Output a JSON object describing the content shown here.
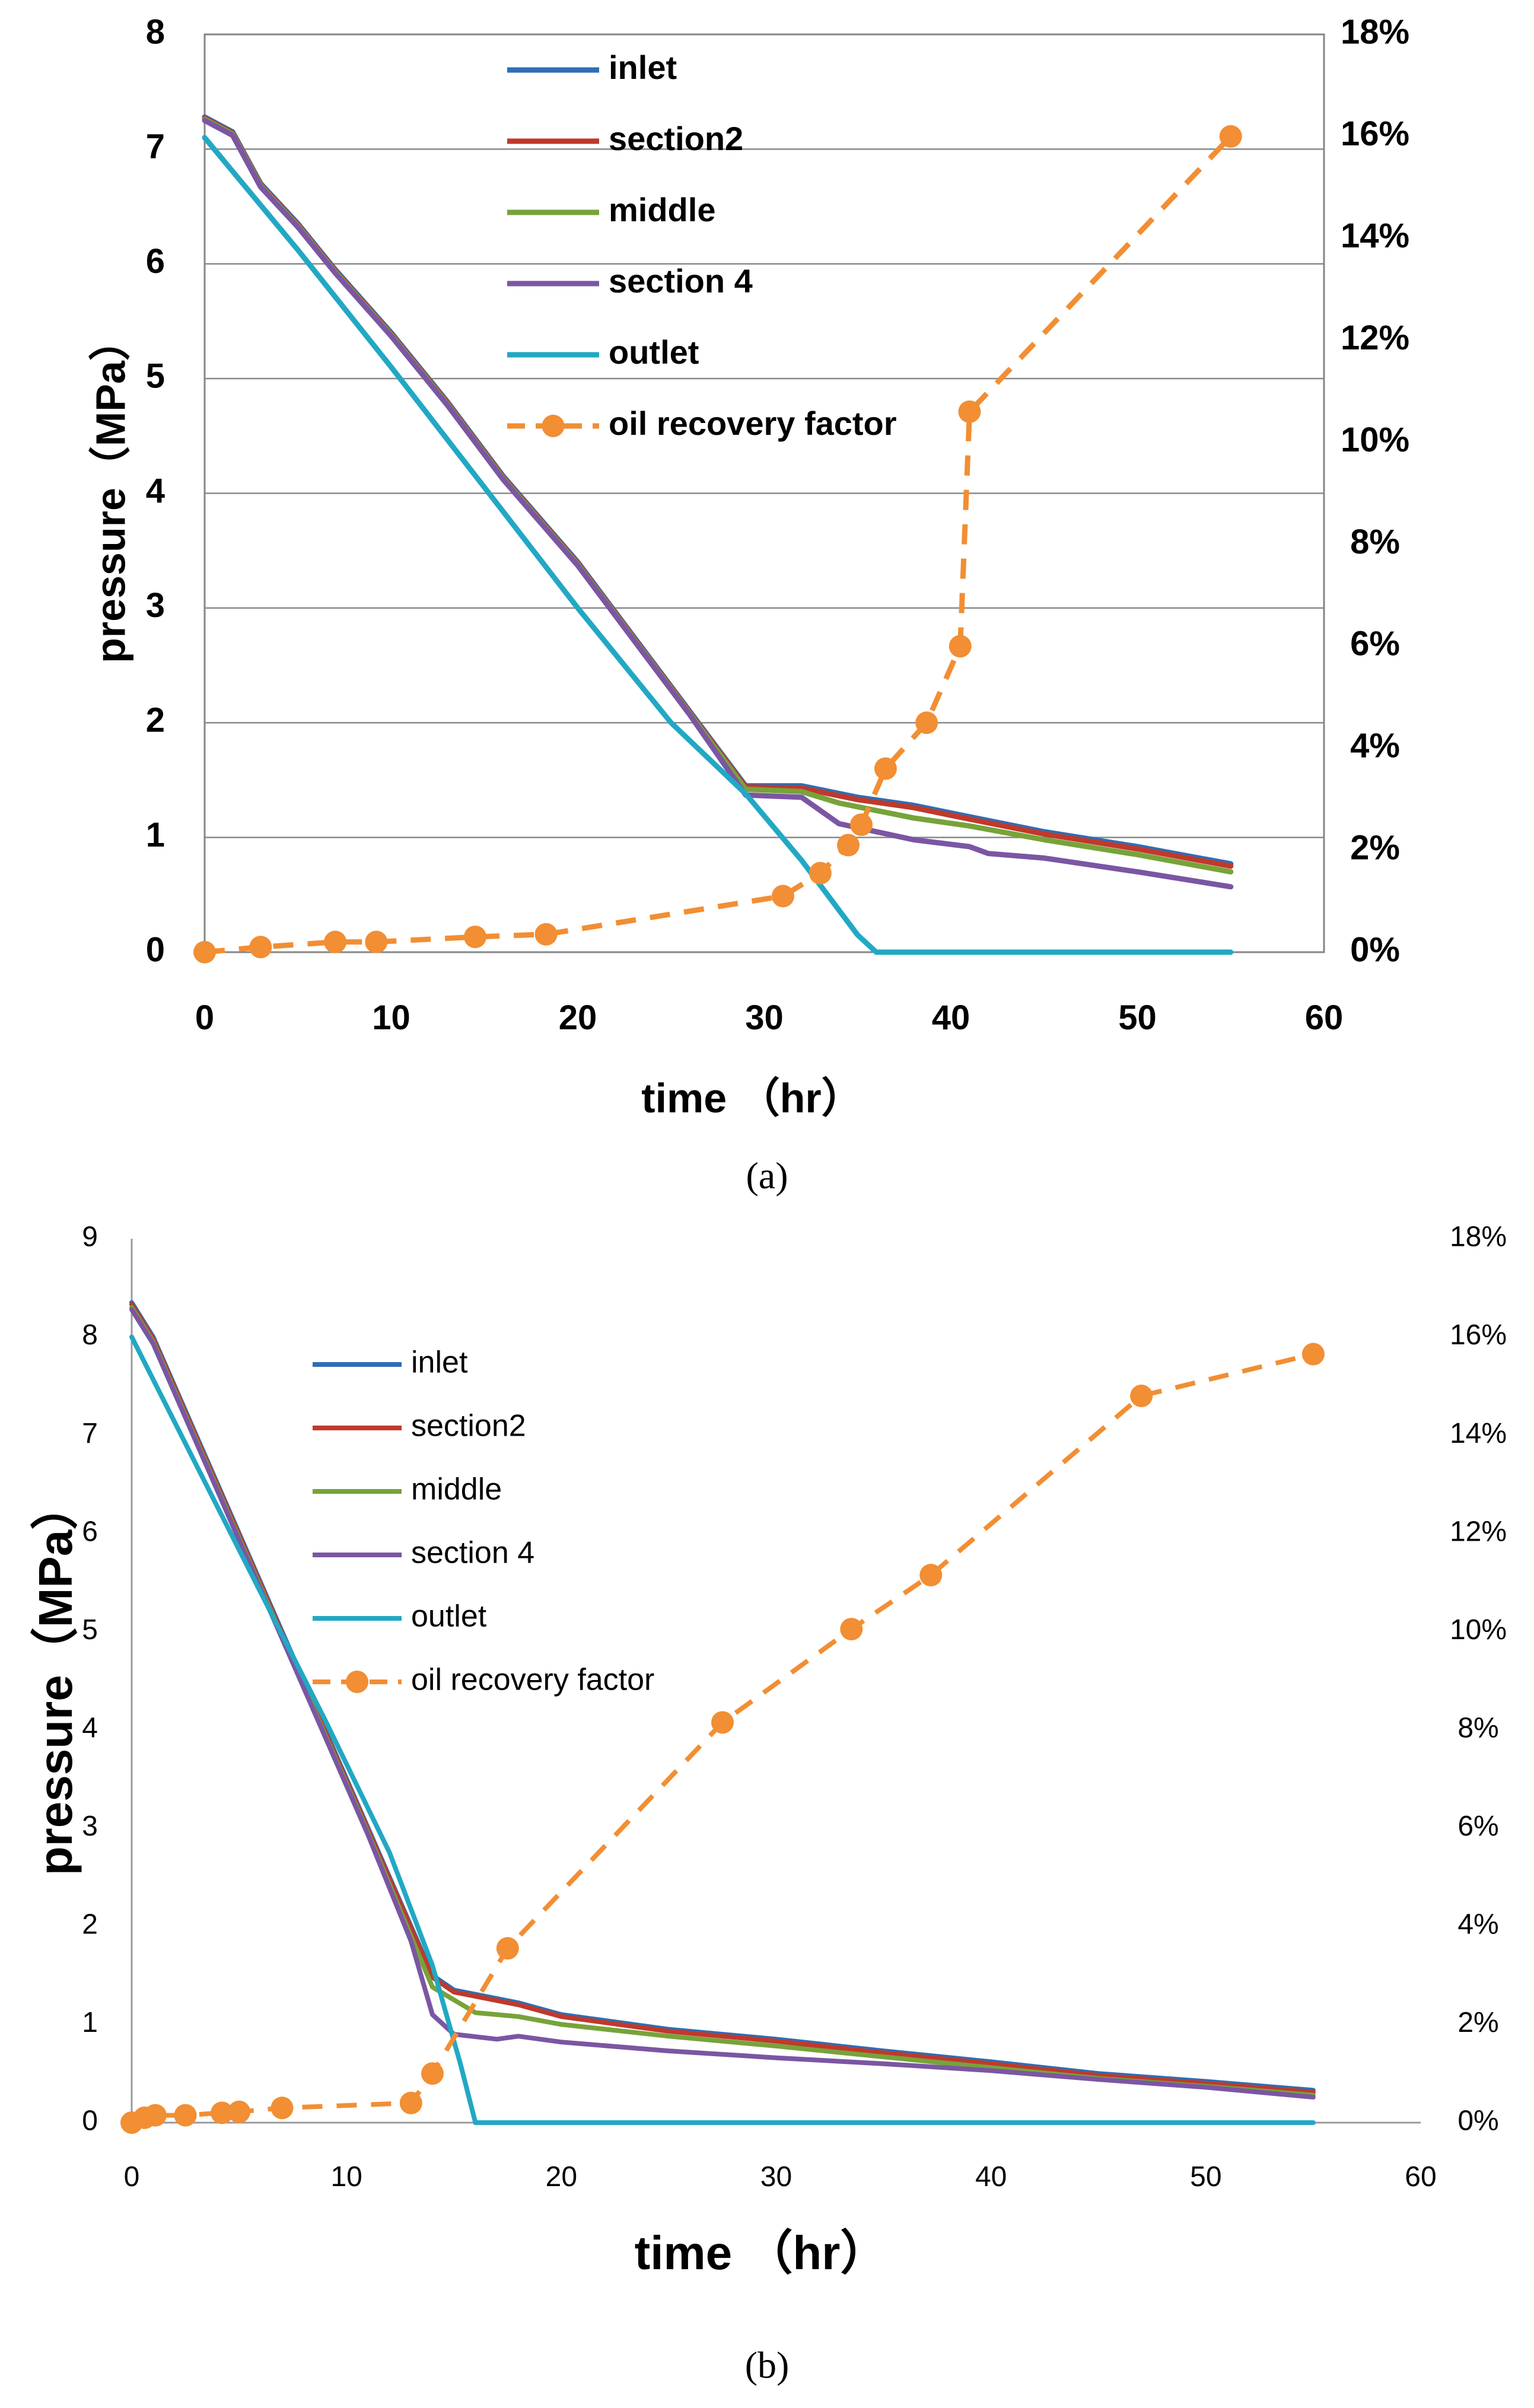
{
  "chart_data": [
    {
      "type": "line",
      "panel": "(a)",
      "title": "",
      "xlabel": "time （hr）",
      "ylabel": "pressure（MPa）",
      "y2label": "",
      "xlim": [
        0,
        60
      ],
      "ylim": [
        0,
        8
      ],
      "y2lim": [
        0,
        18
      ],
      "xticks": [
        "0",
        "10",
        "20",
        "30",
        "40",
        "50",
        "60"
      ],
      "yticks": [
        "0",
        "1",
        "2",
        "3",
        "4",
        "5",
        "6",
        "7",
        "8"
      ],
      "y2ticks": [
        "0%",
        "2%",
        "4%",
        "6%",
        "8%",
        "10%",
        "12%",
        "14%",
        "16%",
        "18%"
      ],
      "grid": "horizontal",
      "legend": "top-center",
      "series": [
        {
          "name": "inlet",
          "color": "#2e6eb5",
          "axis": "left",
          "style": "solid",
          "points": [
            [
              0,
              7.28
            ],
            [
              1.5,
              7.15
            ],
            [
              3,
              6.7
            ],
            [
              5,
              6.35
            ],
            [
              7,
              5.95
            ],
            [
              10,
              5.4
            ],
            [
              13,
              4.8
            ],
            [
              16,
              4.15
            ],
            [
              20,
              3.4
            ],
            [
              23,
              2.75
            ],
            [
              26,
              2.1
            ],
            [
              29,
              1.45
            ],
            [
              32,
              1.45
            ],
            [
              35,
              1.35
            ],
            [
              38,
              1.28
            ],
            [
              41,
              1.18
            ],
            [
              45,
              1.05
            ],
            [
              50,
              0.92
            ],
            [
              55,
              0.77
            ]
          ]
        },
        {
          "name": "section2",
          "color": "#c0392b",
          "axis": "left",
          "style": "solid",
          "points": [
            [
              0,
              7.27
            ],
            [
              1.5,
              7.14
            ],
            [
              3,
              6.69
            ],
            [
              5,
              6.34
            ],
            [
              7,
              5.94
            ],
            [
              10,
              5.39
            ],
            [
              13,
              4.79
            ],
            [
              16,
              4.14
            ],
            [
              20,
              3.39
            ],
            [
              23,
              2.74
            ],
            [
              26,
              2.09
            ],
            [
              29,
              1.44
            ],
            [
              32,
              1.43
            ],
            [
              35,
              1.33
            ],
            [
              38,
              1.26
            ],
            [
              41,
              1.16
            ],
            [
              45,
              1.03
            ],
            [
              50,
              0.9
            ],
            [
              55,
              0.75
            ]
          ]
        },
        {
          "name": "middle",
          "color": "#77a33a",
          "axis": "left",
          "style": "solid",
          "points": [
            [
              0,
              7.26
            ],
            [
              1.5,
              7.13
            ],
            [
              3,
              6.68
            ],
            [
              5,
              6.33
            ],
            [
              7,
              5.93
            ],
            [
              10,
              5.38
            ],
            [
              13,
              4.78
            ],
            [
              16,
              4.13
            ],
            [
              20,
              3.38
            ],
            [
              23,
              2.73
            ],
            [
              26,
              2.08
            ],
            [
              29,
              1.42
            ],
            [
              32,
              1.4
            ],
            [
              34,
              1.3
            ],
            [
              38,
              1.17
            ],
            [
              41,
              1.1
            ],
            [
              45,
              0.98
            ],
            [
              50,
              0.85
            ],
            [
              55,
              0.7
            ]
          ]
        },
        {
          "name": "section 4",
          "color": "#7b56a3",
          "axis": "left",
          "style": "solid",
          "points": [
            [
              0,
              7.25
            ],
            [
              1.5,
              7.12
            ],
            [
              3,
              6.67
            ],
            [
              5,
              6.32
            ],
            [
              7,
              5.92
            ],
            [
              10,
              5.37
            ],
            [
              13,
              4.77
            ],
            [
              16,
              4.12
            ],
            [
              20,
              3.37
            ],
            [
              23,
              2.72
            ],
            [
              26,
              2.07
            ],
            [
              29,
              1.37
            ],
            [
              32,
              1.35
            ],
            [
              34,
              1.12
            ],
            [
              38,
              0.98
            ],
            [
              41,
              0.92
            ],
            [
              42,
              0.86
            ],
            [
              45,
              0.82
            ],
            [
              50,
              0.7
            ],
            [
              55,
              0.57
            ]
          ]
        },
        {
          "name": "outlet",
          "color": "#22a8c4",
          "axis": "left",
          "style": "solid",
          "points": [
            [
              0,
              7.1
            ],
            [
              5,
              6.12
            ],
            [
              10,
              5.1
            ],
            [
              15,
              4.05
            ],
            [
              20,
              3.0
            ],
            [
              25,
              2.0
            ],
            [
              29,
              1.38
            ],
            [
              32,
              0.8
            ],
            [
              35,
              0.15
            ],
            [
              36,
              0.0
            ],
            [
              55,
              0.0
            ]
          ]
        },
        {
          "name": "oil recovery factor",
          "color": "#f28e33",
          "axis": "right",
          "style": "dashed-markers",
          "points": [
            [
              0,
              0.0
            ],
            [
              3,
              0.1
            ],
            [
              7,
              0.2
            ],
            [
              9.2,
              0.2
            ],
            [
              14.5,
              0.3
            ],
            [
              18.3,
              0.35
            ],
            [
              31,
              1.1
            ],
            [
              33,
              1.55
            ],
            [
              34.5,
              2.1
            ],
            [
              35.2,
              2.5
            ],
            [
              36.5,
              3.6
            ],
            [
              38.7,
              4.5
            ],
            [
              40.5,
              6.0
            ],
            [
              41,
              10.6
            ],
            [
              55,
              16.0
            ]
          ]
        }
      ]
    },
    {
      "type": "line",
      "panel": "(b)",
      "title": "",
      "xlabel": "time （hr）",
      "ylabel": "pressure（MPa）",
      "y2label": "",
      "xlim": [
        0,
        60
      ],
      "ylim": [
        0,
        9
      ],
      "y2lim": [
        0,
        18
      ],
      "xticks": [
        "0",
        "10",
        "20",
        "30",
        "40",
        "50",
        "60"
      ],
      "yticks": [
        "0",
        "1",
        "2",
        "3",
        "4",
        "5",
        "6",
        "7",
        "8",
        "9"
      ],
      "y2ticks": [
        "0%",
        "2%",
        "4%",
        "6%",
        "8%",
        "10%",
        "12%",
        "14%",
        "16%",
        "18%"
      ],
      "grid": "none",
      "legend": "top-left",
      "series": [
        {
          "name": "inlet",
          "color": "#2e6eb5",
          "axis": "left",
          "style": "solid",
          "points": [
            [
              0,
              8.35
            ],
            [
              1,
              8.0
            ],
            [
              3,
              7.0
            ],
            [
              5,
              6.0
            ],
            [
              7,
              5.0
            ],
            [
              9,
              4.0
            ],
            [
              11,
              3.0
            ],
            [
              13,
              2.0
            ],
            [
              14,
              1.5
            ],
            [
              15,
              1.35
            ],
            [
              18,
              1.22
            ],
            [
              20,
              1.1
            ],
            [
              25,
              0.95
            ],
            [
              30,
              0.85
            ],
            [
              35,
              0.73
            ],
            [
              40,
              0.62
            ],
            [
              45,
              0.5
            ],
            [
              50,
              0.42
            ],
            [
              55,
              0.33
            ]
          ]
        },
        {
          "name": "section2",
          "color": "#c0392b",
          "axis": "left",
          "style": "solid",
          "points": [
            [
              0,
              8.33
            ],
            [
              1,
              7.98
            ],
            [
              3,
              6.98
            ],
            [
              5,
              5.98
            ],
            [
              7,
              4.98
            ],
            [
              9,
              3.98
            ],
            [
              11,
              2.98
            ],
            [
              13,
              1.98
            ],
            [
              14,
              1.48
            ],
            [
              15,
              1.33
            ],
            [
              18,
              1.2
            ],
            [
              20,
              1.08
            ],
            [
              25,
              0.93
            ],
            [
              30,
              0.83
            ],
            [
              35,
              0.71
            ],
            [
              40,
              0.6
            ],
            [
              45,
              0.48
            ],
            [
              50,
              0.4
            ],
            [
              55,
              0.31
            ]
          ]
        },
        {
          "name": "middle",
          "color": "#77a33a",
          "axis": "left",
          "style": "solid",
          "points": [
            [
              0,
              8.3
            ],
            [
              1,
              7.95
            ],
            [
              3,
              6.95
            ],
            [
              5,
              5.95
            ],
            [
              7,
              4.95
            ],
            [
              9,
              3.95
            ],
            [
              11,
              2.95
            ],
            [
              13,
              1.9
            ],
            [
              14,
              1.38
            ],
            [
              16,
              1.12
            ],
            [
              18,
              1.08
            ],
            [
              20,
              1.0
            ],
            [
              25,
              0.88
            ],
            [
              30,
              0.78
            ],
            [
              35,
              0.67
            ],
            [
              40,
              0.56
            ],
            [
              45,
              0.45
            ],
            [
              50,
              0.37
            ],
            [
              55,
              0.28
            ]
          ]
        },
        {
          "name": "section 4",
          "color": "#7b56a3",
          "axis": "left",
          "style": "solid",
          "points": [
            [
              0,
              8.28
            ],
            [
              1,
              7.93
            ],
            [
              3,
              6.93
            ],
            [
              5,
              5.93
            ],
            [
              7,
              4.93
            ],
            [
              9,
              3.93
            ],
            [
              11,
              2.93
            ],
            [
              13,
              1.85
            ],
            [
              14,
              1.1
            ],
            [
              15,
              0.9
            ],
            [
              17,
              0.85
            ],
            [
              18,
              0.88
            ],
            [
              20,
              0.82
            ],
            [
              25,
              0.73
            ],
            [
              30,
              0.66
            ],
            [
              35,
              0.6
            ],
            [
              40,
              0.53
            ],
            [
              45,
              0.44
            ],
            [
              50,
              0.36
            ],
            [
              55,
              0.26
            ]
          ]
        },
        {
          "name": "outlet",
          "color": "#22a8c4",
          "axis": "left",
          "style": "solid",
          "points": [
            [
              0,
              8.0
            ],
            [
              3,
              6.7
            ],
            [
              6,
              5.4
            ],
            [
              9,
              4.1
            ],
            [
              12,
              2.75
            ],
            [
              14,
              1.6
            ],
            [
              15.3,
              0.6
            ],
            [
              16,
              0.0
            ],
            [
              55,
              0.0
            ]
          ]
        },
        {
          "name": "oil recovery factor",
          "color": "#f28e33",
          "axis": "right",
          "style": "dashed-markers",
          "points": [
            [
              0,
              0.0
            ],
            [
              0.6,
              0.1
            ],
            [
              1.1,
              0.15
            ],
            [
              2.5,
              0.15
            ],
            [
              4.2,
              0.2
            ],
            [
              5,
              0.22
            ],
            [
              7,
              0.3
            ],
            [
              13,
              0.4
            ],
            [
              14,
              1.0
            ],
            [
              17.5,
              3.55
            ],
            [
              27.5,
              8.15
            ],
            [
              33.5,
              10.05
            ],
            [
              37.2,
              11.15
            ],
            [
              47,
              14.8
            ],
            [
              55,
              15.65
            ]
          ]
        }
      ]
    }
  ],
  "captions": {
    "a": "(a)",
    "b": "(b)"
  }
}
